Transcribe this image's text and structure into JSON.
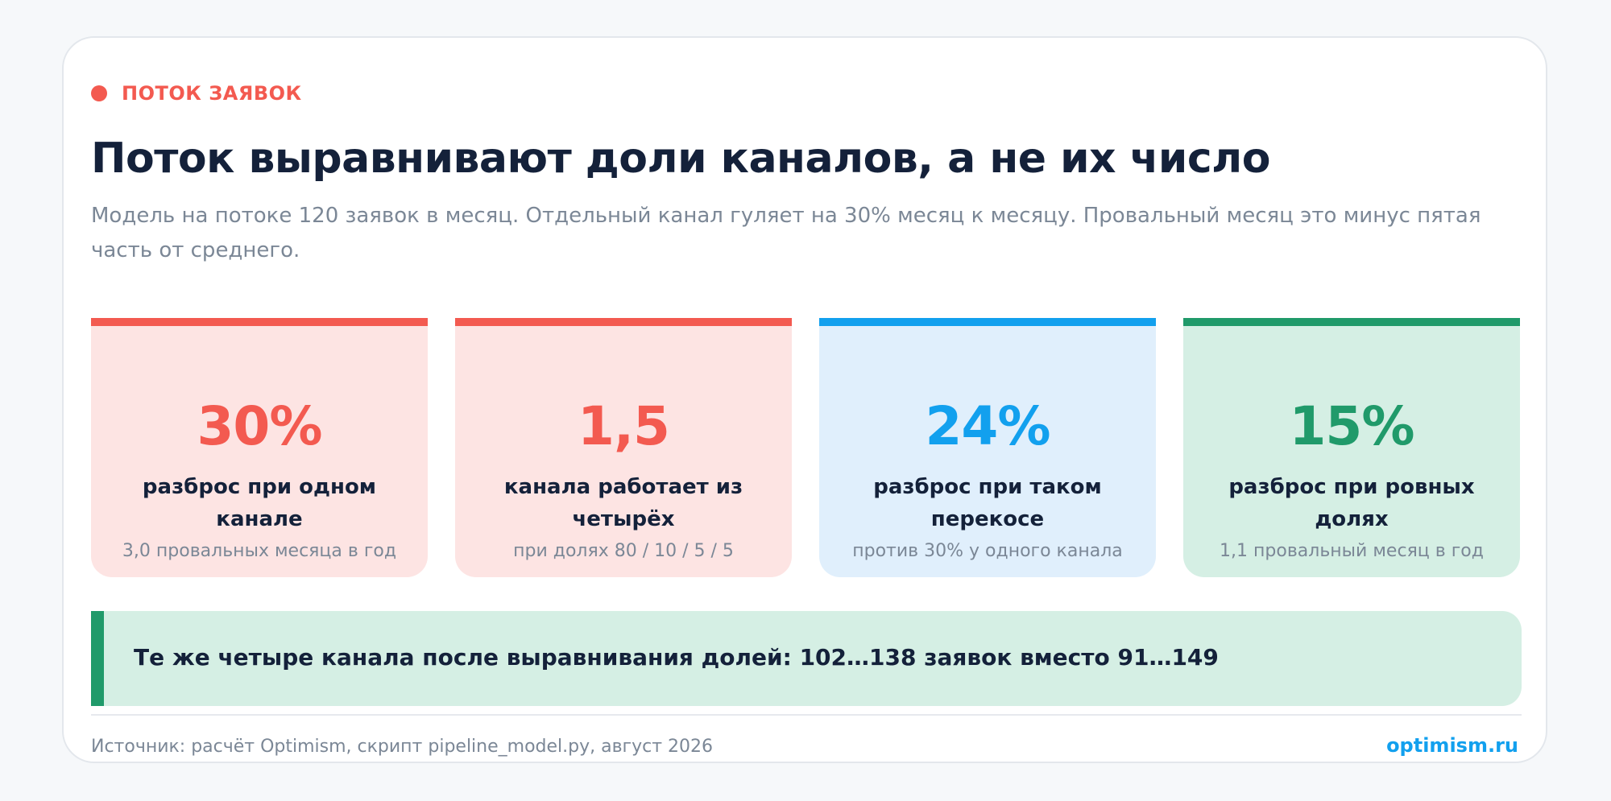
{
  "eyebrow": {
    "label": "ПОТОК ЗАЯВОК",
    "color": "#f35a50"
  },
  "title": "Поток выравнивают доли каналов, а не их число",
  "subtitle": "Модель на потоке 120 заявок в месяц. Отдельный канал гуляет на 30% месяц к месяцу. Провальный месяц это минус пятая часть от среднего.",
  "stats": [
    {
      "value": "30%",
      "label": "разброс при одном канале",
      "note": "3,0 провальных месяца в год",
      "accent": "#f35a50",
      "background": "#fde4e3"
    },
    {
      "value": "1,5",
      "label": "канала работает из четырёх",
      "note": "при долях 80 / 10 / 5 / 5",
      "accent": "#f35a50",
      "background": "#fde4e3"
    },
    {
      "value": "24%",
      "label": "разброс при таком перекосе",
      "note": "против 30% у одного канала",
      "accent": "#12a0ee",
      "background": "#e0effc"
    },
    {
      "value": "15%",
      "label": "разброс при ровных долях",
      "note": "1,1 провальный месяц в год",
      "accent": "#209a6a",
      "background": "#d5efe4"
    }
  ],
  "banner": {
    "text": "Те же четыре канала после выравнивания долей: 102…138 заявок вместо 91…149",
    "accent": "#209a6a",
    "background": "#d5efe4"
  },
  "footer": {
    "source": "Источник: расчёт Optimism, скрипт pipeline_model.py, август 2026",
    "brand": "optimism.ru",
    "brand_color": "#12a0ee"
  }
}
